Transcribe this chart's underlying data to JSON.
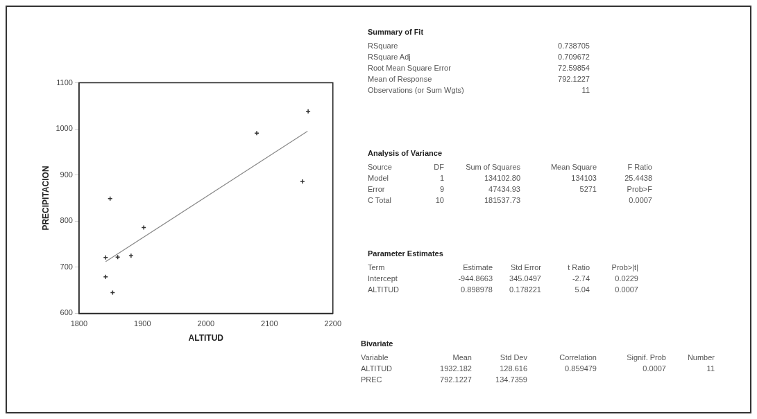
{
  "chart_data": [
    {
      "type": "scatter",
      "xlabel": "ALTITUD",
      "ylabel": "PRECIPITACION",
      "xlim": [
        1800,
        2200
      ],
      "xticks": [
        1800,
        1900,
        2000,
        2100,
        2200
      ],
      "ylim": [
        600,
        1100
      ],
      "yticks": [
        600,
        700,
        800,
        900,
        1000,
        1100
      ],
      "grid": false,
      "legend": false,
      "series": [
        {
          "color": "#333333",
          "marker": "cross",
          "x": [
            1842,
            1842,
            1853,
            1849,
            1861,
            1882,
            1902,
            2080,
            2152,
            2161
          ],
          "values": [
            721,
            679,
            645,
            849,
            722,
            725,
            786,
            991,
            886,
            1038
          ]
        },
        {
          "type": "line",
          "color": "#888888",
          "marker": "none",
          "x": [
            1842,
            2160
          ],
          "values": [
            712,
            995
          ]
        }
      ]
    },
    {
      "type": "other",
      "title": "Summary of Fit",
      "annotations": [
        "RSquare",
        "0.738705",
        "RSquare Adj",
        "0.709672",
        "Root Mean Square Error",
        "72.59854",
        "Mean of Response",
        "792.1227",
        "Observations (or Sum Wgts)",
        "11"
      ]
    },
    {
      "type": "other",
      "title": "Analysis of Variance",
      "annotations": [
        "Source",
        "DF",
        "Sum of Squares",
        "Mean Square",
        "F Ratio",
        "Model",
        "1",
        "134102.80",
        "134103",
        "25.4438",
        "Error",
        "9",
        "47434.93",
        "5271",
        "Prob>F",
        "C Total",
        "10",
        "181537.73",
        "0.0007"
      ]
    },
    {
      "type": "other",
      "title": "Parameter Estimates",
      "annotations": [
        "Term",
        "Estimate",
        "Std Error",
        "t Ratio",
        "Prob>|t|",
        "Intercept",
        "-944.8663",
        "345.0497",
        "-2.74",
        "0.0229",
        "ALTITUD",
        "0.898978",
        "0.178221",
        "5.04",
        "0.0007"
      ]
    },
    {
      "type": "other",
      "title": "Bivariate",
      "annotations": [
        "Variable",
        "Mean",
        "Std Dev",
        "Correlation",
        "Signif. Prob",
        "Number",
        "ALTITUD",
        "1932.182",
        "128.616",
        "0.859479",
        "0.0007",
        "11",
        "PREC",
        "792.1227",
        "134.7359"
      ]
    }
  ]
}
